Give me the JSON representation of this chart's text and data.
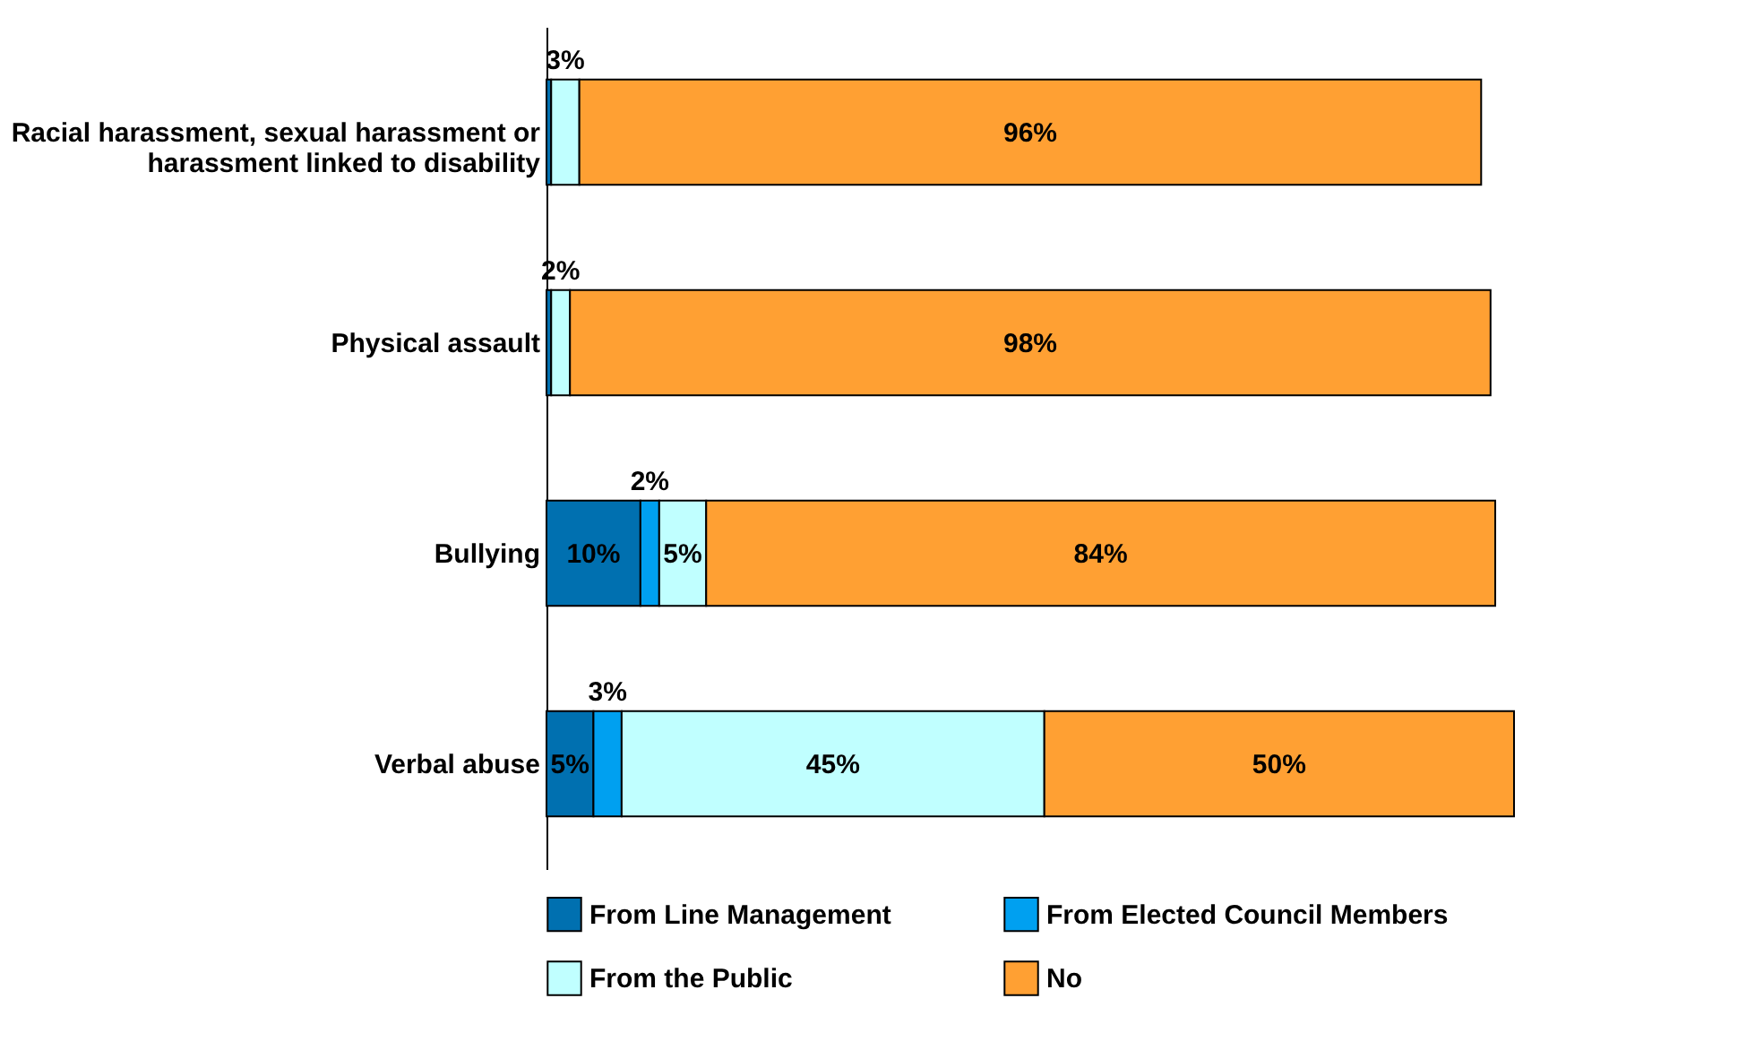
{
  "chart_data": {
    "type": "bar",
    "orientation": "horizontal",
    "stacked": true,
    "categories": [
      "Racial harassment, sexual harassment or harassment linked to disability",
      "Physical assault",
      "Bullying",
      "Verbal abuse"
    ],
    "series": [
      {
        "name": "From Line Management",
        "color": "#0070b0",
        "values": [
          0.5,
          0.5,
          10,
          5
        ],
        "value_labels": [
          null,
          null,
          "10%",
          "5%"
        ]
      },
      {
        "name": "From Elected Council Members",
        "color": "#00a0f0",
        "values": [
          null,
          null,
          2,
          3
        ],
        "value_labels": [
          null,
          null,
          "2%",
          "3%"
        ]
      },
      {
        "name": "From the Public",
        "color": "#c0ffff",
        "values": [
          3,
          2,
          5,
          45
        ],
        "value_labels": [
          "3%",
          "2%",
          "5%",
          "45%"
        ]
      },
      {
        "name": "No",
        "color": "#ffa033",
        "values": [
          96,
          98,
          84,
          50
        ],
        "value_labels": [
          "96%",
          "98%",
          "84%",
          "50%"
        ]
      }
    ],
    "grid": false,
    "legend": "bottom"
  }
}
